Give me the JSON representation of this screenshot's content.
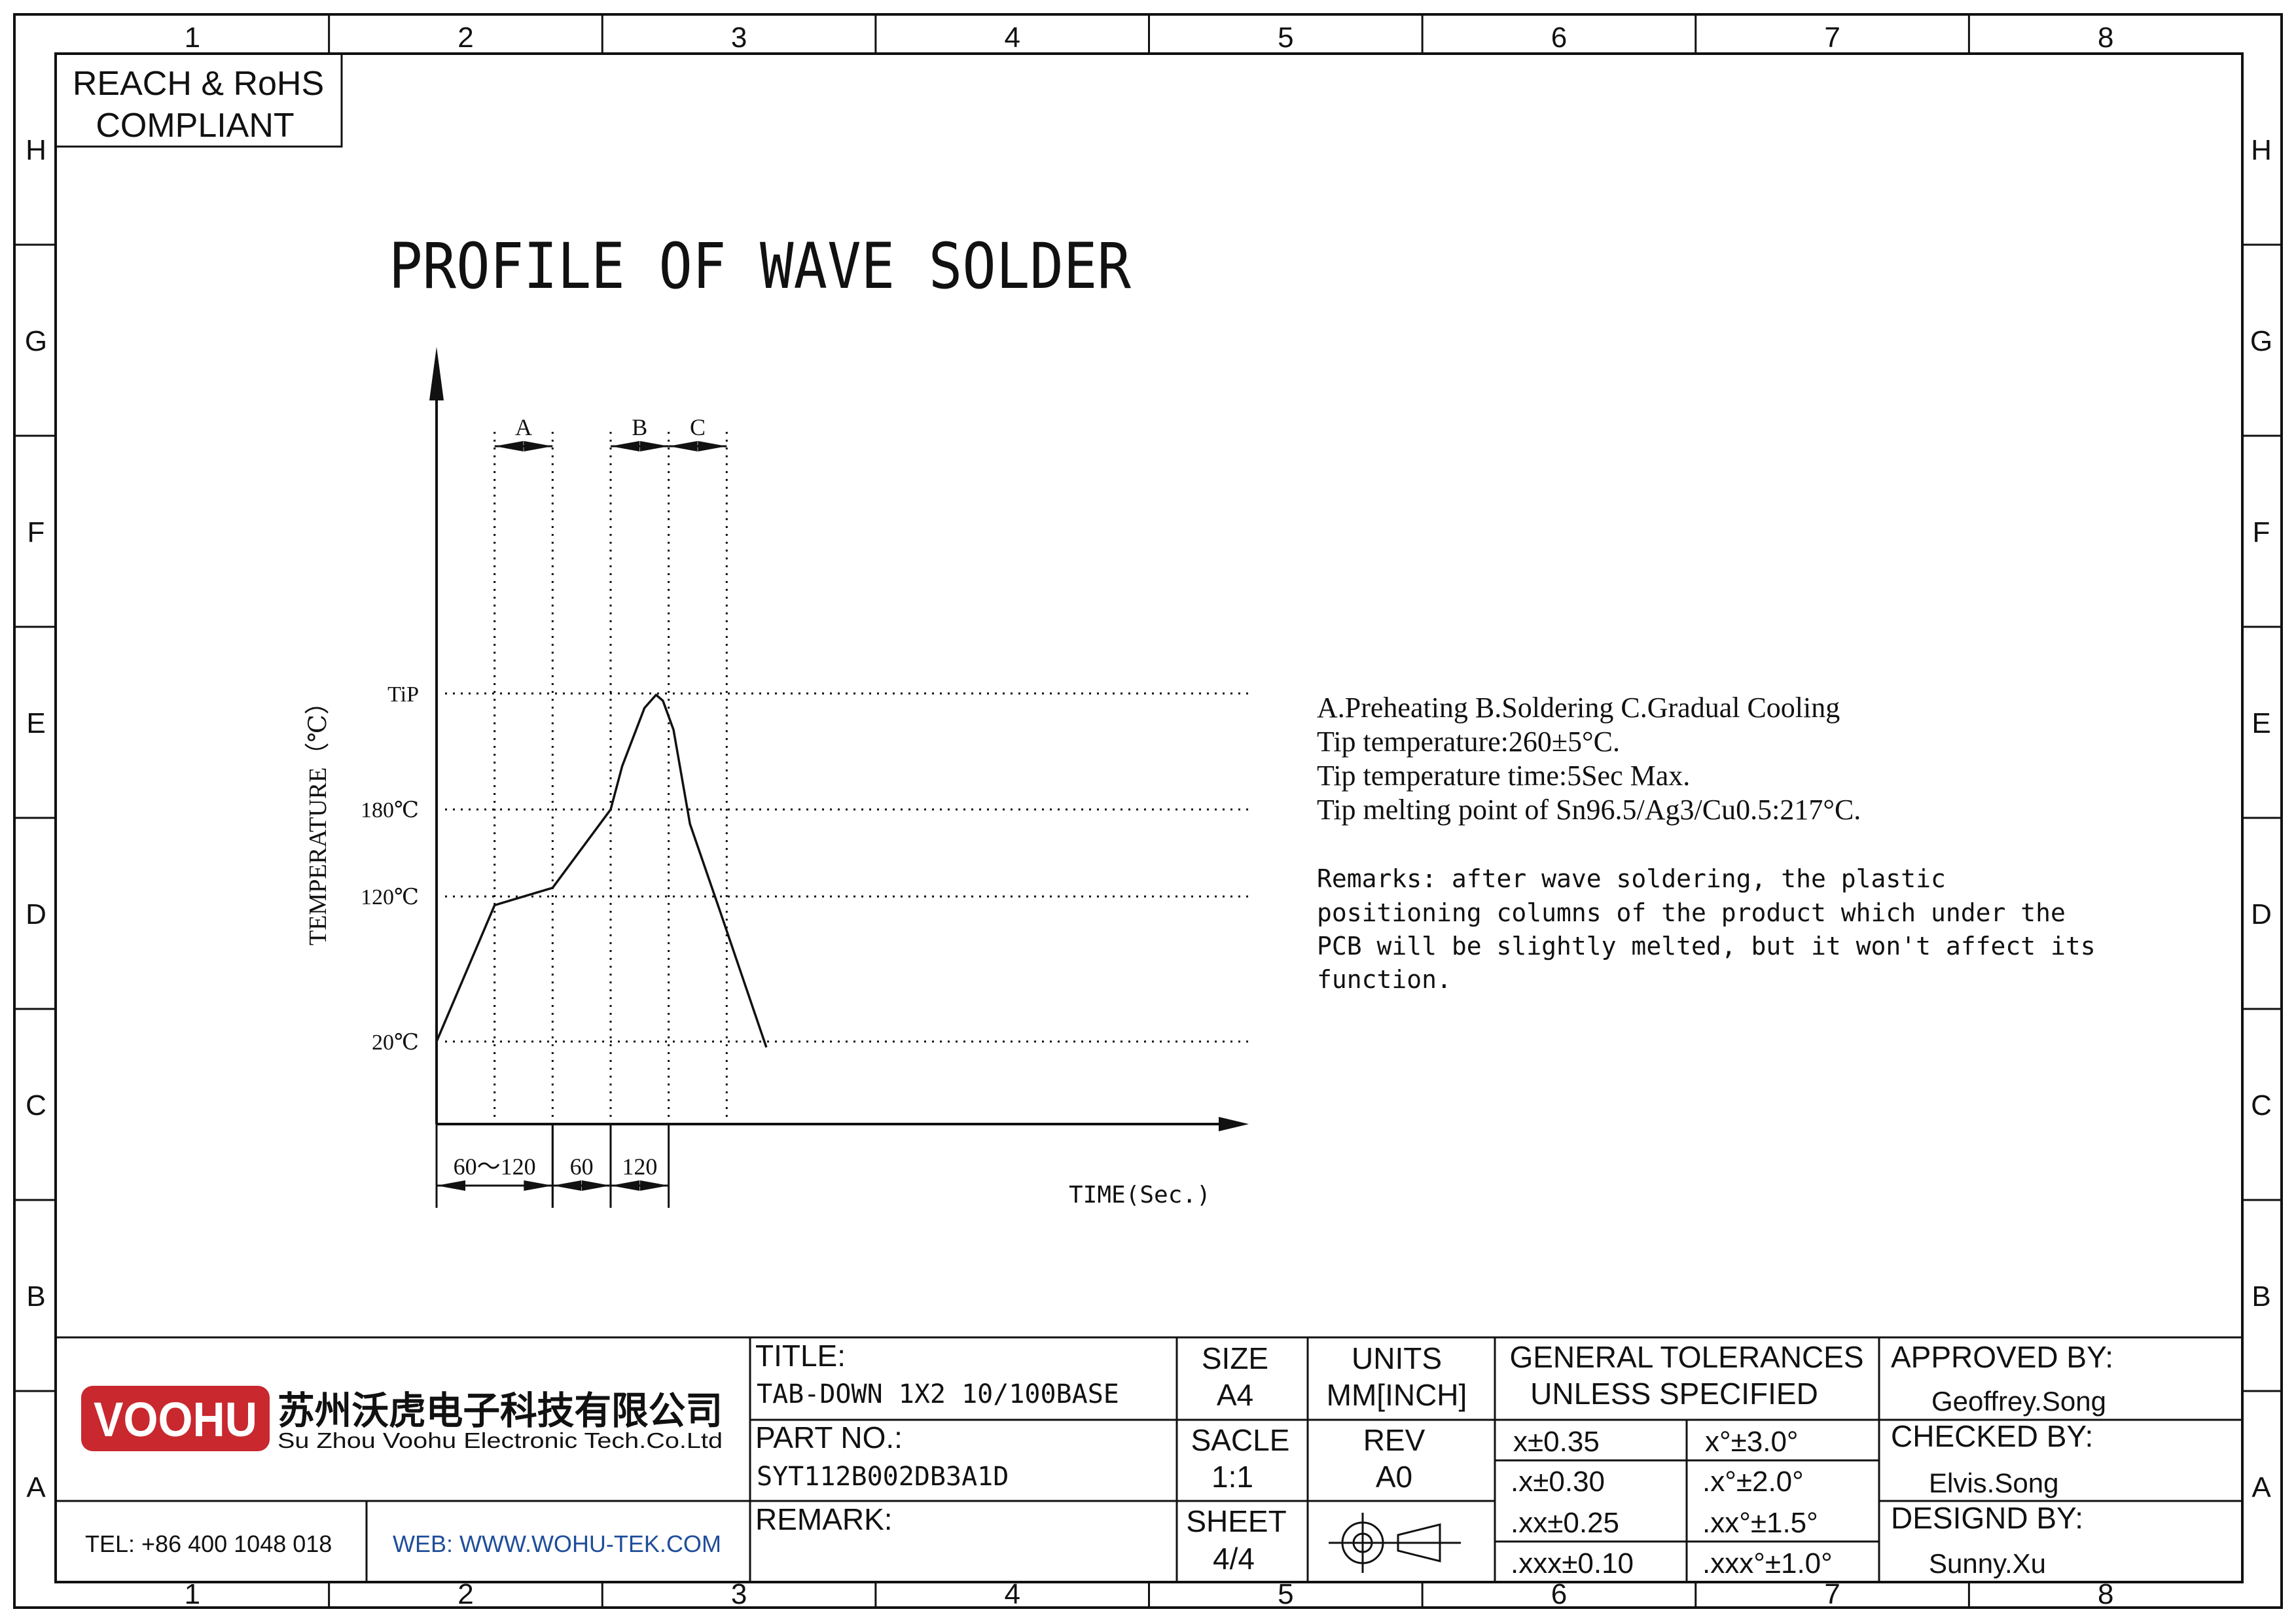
{
  "frame": {
    "columns": [
      "1",
      "2",
      "3",
      "4",
      "5",
      "6",
      "7",
      "8"
    ],
    "rows": [
      "H",
      "G",
      "F",
      "E",
      "D",
      "C",
      "B",
      "A"
    ]
  },
  "compliance": {
    "line1": "REACH & RoHS",
    "line2": "COMPLIANT"
  },
  "heading": "PROFILE OF WAVE SOLDER",
  "chart_data": {
    "type": "line",
    "title": "PROFILE OF WAVE SOLDER",
    "xlabel": "TIME(Sec.)",
    "ylabel": "TEMPERATURE（℃）",
    "y_ticks": [
      {
        "label": "20℃",
        "value": 20
      },
      {
        "label": "120℃",
        "value": 120
      },
      {
        "label": "180℃",
        "value": 180
      },
      {
        "label": "TiP",
        "value": 260
      }
    ],
    "phases": [
      {
        "label": "A",
        "start": 60,
        "end": 120
      },
      {
        "label": "B",
        "start": 180,
        "end": 240
      },
      {
        "label": "C",
        "start": 240,
        "end": 300
      }
    ],
    "time_dimensions": [
      {
        "label": "60～120",
        "start": 0,
        "end": 120
      },
      {
        "label": "60",
        "start": 120,
        "end": 180
      },
      {
        "label": "120",
        "start": 180,
        "end": 240
      }
    ],
    "series": [
      {
        "x": [
          0,
          60,
          80,
          120,
          180,
          192,
          215,
          227,
          234,
          245,
          262,
          293,
          341
        ],
        "y": [
          20,
          114,
          118,
          126,
          180,
          210,
          250,
          259,
          255,
          235,
          170,
          110,
          16
        ]
      }
    ],
    "xlim": [
      0,
      345
    ],
    "ylim": [
      0,
      260
    ]
  },
  "notes": {
    "lines": [
      "A.Preheating  B.Soldering  C.Gradual Cooling",
      "Tip temperature:260±5°C.",
      "Tip temperature time:5Sec Max.",
      "Tip melting point of Sn96.5/Ag3/Cu0.5:217°C."
    ],
    "remarks": [
      "Remarks: after wave soldering, the plastic",
      "positioning columns of the product  which under the",
      "PCB will be slightly melted, but it won't affect its",
      "function."
    ]
  },
  "title_block": {
    "logo_text": "VOOHU",
    "company_cn": "苏州沃虎电子科技有限公司",
    "company_en": "Su Zhou Voohu Electronic Tech.Co.Ltd",
    "tel": "TEL: +86 400 1048 018",
    "web": "WEB: WWW.WOHU-TEK.COM",
    "title_label": "TITLE:",
    "title_value": "TAB-DOWN 1X2 10/100BASE",
    "part_label": "PART NO.:",
    "part_value": "SYT112B002DB3A1D",
    "remark_label": "REMARK:",
    "size_label": "SIZE",
    "size_value": "A4",
    "units_label": "UNITS",
    "units_value": "MM[INCH]",
    "scale_label": "SACLE",
    "scale_value": "1:1",
    "rev_label": "REV",
    "rev_value": "A0",
    "sheet_label": "SHEET",
    "sheet_value": "4/4",
    "tol_line1": "GENERAL TOLERANCES",
    "tol_line2": "UNLESS SPECIFIED",
    "tolerances": [
      {
        "linear": "x±0.35",
        "angular": "x°±3.0°"
      },
      {
        "linear": ".x±0.30",
        "angular": ".x°±2.0°"
      },
      {
        "linear": ".xx±0.25",
        "angular": ".xx°±1.5°"
      },
      {
        "linear": ".xxx±0.10",
        "angular": ".xxx°±1.0°"
      }
    ],
    "approved_label": "APPROVED BY:",
    "approved_value": "Geoffrey.Song",
    "checked_label": "CHECKED BY:",
    "checked_value": "Elvis.Song",
    "design_label": "DESIGND BY:",
    "design_value": "Sunny.Xu",
    "colors": {
      "logo_red": "#c8282e",
      "web_blue": "#1f4e9a",
      "line": "#111111"
    }
  }
}
